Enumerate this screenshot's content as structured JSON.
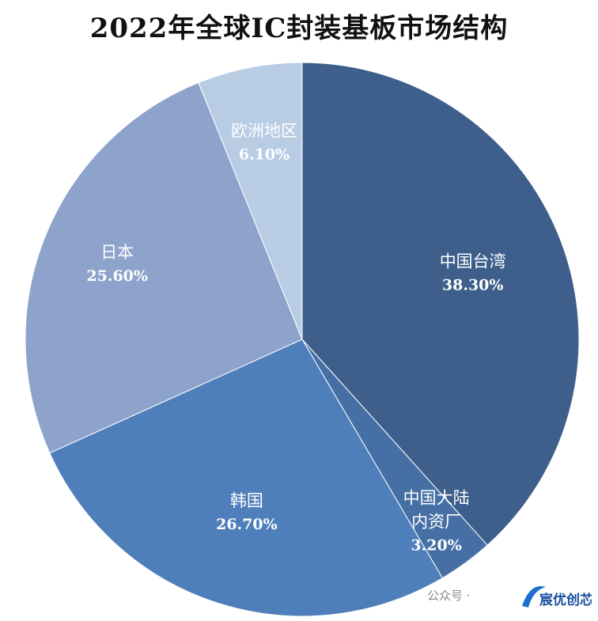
{
  "chart_data": {
    "type": "pie",
    "title": "2022年全球IC封装基板市场结构",
    "slices": [
      {
        "label": "中国台湾",
        "value": 38.3,
        "value_label": "38.30%",
        "color": "#3E5F8C"
      },
      {
        "label": "中国大陆内资厂",
        "value": 3.2,
        "value_label": "3.20%",
        "color": "#4670A5"
      },
      {
        "label": "韩国",
        "value": 26.7,
        "value_label": "26.70%",
        "color": "#4F7FBA"
      },
      {
        "label": "日本",
        "value": 25.6,
        "value_label": "25.60%",
        "color": "#8EA3CC"
      },
      {
        "label": "欧洲地区",
        "value": 6.1,
        "value_label": "6.10%",
        "color": "#B8CCE4"
      }
    ]
  },
  "watermark": {
    "text": "公众号 ·",
    "logo_text": "宸优创芯"
  }
}
